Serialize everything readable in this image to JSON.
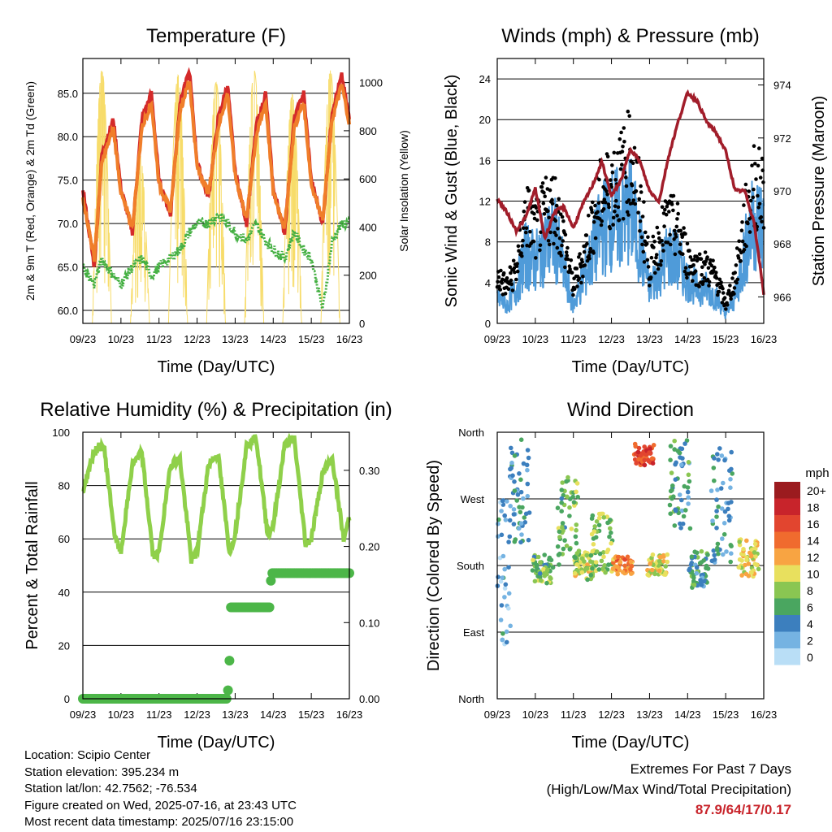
{
  "chart_data": [
    {
      "type": "line",
      "title": "Temperature (F)",
      "xlabel": "Time (Day/UTC)",
      "ylabel": "2m & 9m T (Red, Orange) & 2m Td (Green)",
      "y2label": "Solar Insolation (Yellow)",
      "x_ticks": [
        "09/23",
        "10/23",
        "11/23",
        "12/23",
        "13/23",
        "14/23",
        "15/23",
        "16/23"
      ],
      "ylim": [
        58.5,
        89
      ],
      "yticks": [
        "60.0",
        "65.0",
        "70.0",
        "75.0",
        "80.0",
        "85.0"
      ],
      "y2lim": [
        0,
        1100
      ],
      "y2ticks": [
        "0",
        "200",
        "400",
        "600",
        "800",
        "1000"
      ],
      "x_days": [
        0,
        0.3,
        0.5,
        0.8,
        1.0,
        1.3,
        1.55,
        1.8,
        2.0,
        2.3,
        2.55,
        2.8,
        3.0,
        3.3,
        3.55,
        3.8,
        4.0,
        4.3,
        4.55,
        4.8,
        5.0,
        5.3,
        5.55,
        5.8,
        6.0,
        6.3,
        6.55,
        6.8,
        7.0
      ],
      "series": [
        {
          "name": "2m T",
          "color": "#d42a2a",
          "values": [
            74,
            65,
            78,
            82,
            74,
            69,
            82,
            85,
            75,
            71,
            84,
            87.5,
            77,
            73,
            82,
            86,
            76,
            70,
            81,
            85,
            74,
            69,
            82,
            85,
            75,
            70,
            83,
            87,
            82
          ]
        },
        {
          "name": "9m T",
          "color": "#f07e2a",
          "values": [
            73,
            66,
            77,
            81,
            73.5,
            69.5,
            81,
            84,
            74.5,
            71.5,
            83,
            86.5,
            76.5,
            73.5,
            81,
            85,
            75.5,
            70.5,
            80,
            84,
            73.5,
            69.5,
            81,
            84,
            74.5,
            70.5,
            82,
            86,
            81.5
          ]
        },
        {
          "name": "2m Td",
          "color": "#45b043",
          "values": [
            65,
            63,
            66,
            64,
            63,
            65,
            66,
            64,
            65,
            66,
            67,
            69,
            70,
            70,
            71,
            70,
            69,
            68,
            70,
            68,
            67,
            66,
            69,
            67,
            66,
            60,
            68,
            70,
            70
          ]
        }
      ],
      "solar_peaks": [
        1050,
        700,
        1030,
        1000,
        1050,
        950,
        1050,
        1000
      ]
    },
    {
      "type": "line",
      "title": "Winds (mph) & Pressure (mb)",
      "xlabel": "Time (Day/UTC)",
      "ylabel": "Sonic Wind & Gust (Blue, Black)",
      "y2label": "Station Pressure (Maroon)",
      "x_ticks": [
        "09/23",
        "10/23",
        "11/23",
        "12/23",
        "13/23",
        "14/23",
        "15/23",
        "16/23"
      ],
      "ylim": [
        0,
        26
      ],
      "yticks": [
        "0",
        "4",
        "8",
        "12",
        "16",
        "20",
        "24"
      ],
      "y2lim": [
        965,
        975
      ],
      "y2ticks": [
        "966",
        "968",
        "970",
        "972",
        "974"
      ],
      "x_days": [
        0,
        0.25,
        0.5,
        0.75,
        1.0,
        1.25,
        1.5,
        1.75,
        2.0,
        2.25,
        2.5,
        2.75,
        3.0,
        3.25,
        3.5,
        3.75,
        4.0,
        4.25,
        4.5,
        4.75,
        5.0,
        5.25,
        5.5,
        5.75,
        6.0,
        6.25,
        6.5,
        6.75,
        7.0
      ],
      "series": [
        {
          "name": "Wind",
          "color": "#4f9bd9",
          "values": [
            3,
            2,
            4,
            8,
            7,
            9,
            10,
            6,
            2,
            5,
            8,
            11,
            12,
            12,
            13,
            9,
            4,
            6,
            8,
            7,
            5,
            4,
            4,
            3,
            1,
            3,
            8,
            12,
            11
          ]
        },
        {
          "name": "Gust",
          "color": "#000000",
          "values": [
            5,
            4,
            6,
            12,
            10,
            12,
            13,
            9,
            4,
            7,
            11,
            14,
            15,
            16,
            18,
            13,
            6,
            9,
            11,
            10,
            7,
            6,
            6,
            5,
            2,
            5,
            11,
            15,
            14
          ]
        },
        {
          "name": "Pressure",
          "color": "#a11d2a",
          "values": [
            969.7,
            969.2,
            968.5,
            969.0,
            970.1,
            968.2,
            969.2,
            969.4,
            968.6,
            969.5,
            970.2,
            971.1,
            969.8,
            970.4,
            971.6,
            971.1,
            970.0,
            969.6,
            971.3,
            972.6,
            973.7,
            973.4,
            972.6,
            972.2,
            971.5,
            970.0,
            970.0,
            968.8,
            966.1
          ]
        }
      ]
    },
    {
      "type": "line",
      "title": "Relative Humidity (%) & Precipitation (in)",
      "xlabel": "Time (Day/UTC)",
      "ylabel": "Percent & Total Rainfall",
      "x_ticks": [
        "09/23",
        "10/23",
        "11/23",
        "12/23",
        "13/23",
        "14/23",
        "15/23",
        "16/23"
      ],
      "ylim": [
        0,
        100
      ],
      "yticks": [
        "0",
        "20",
        "40",
        "60",
        "80",
        "100"
      ],
      "y2lim": [
        0,
        0.35
      ],
      "y2ticks": [
        "0.00",
        "0.10",
        "0.20",
        "0.30"
      ],
      "x_days": [
        0,
        0.3,
        0.55,
        0.85,
        1.0,
        1.3,
        1.55,
        1.85,
        2.0,
        2.3,
        2.55,
        2.85,
        3.0,
        3.3,
        3.55,
        3.85,
        4.0,
        4.3,
        4.55,
        4.85,
        5.0,
        5.3,
        5.55,
        5.85,
        6.0,
        6.3,
        6.55,
        6.85,
        7.0
      ],
      "series": [
        {
          "name": "RH",
          "color": "#8fd04a",
          "values": [
            78,
            93,
            95,
            60,
            55,
            88,
            92,
            53,
            55,
            88,
            90,
            52,
            55,
            88,
            92,
            55,
            62,
            95,
            98,
            62,
            65,
            95,
            98,
            58,
            60,
            85,
            90,
            60,
            68
          ]
        }
      ],
      "precip": {
        "name": "Total Rainfall",
        "color": "#4cb648",
        "steps": [
          [
            0,
            0
          ],
          [
            3.8,
            0
          ],
          [
            3.85,
            0.05
          ],
          [
            3.88,
            0.12
          ],
          [
            4.9,
            0.12
          ],
          [
            4.95,
            0.165
          ],
          [
            7.0,
            0.165
          ]
        ]
      }
    },
    {
      "type": "scatter",
      "title": "Wind Direction",
      "xlabel": "Time (Day/UTC)",
      "ylabel": "Direction (Colored By Speed)",
      "x_ticks": [
        "09/23",
        "10/23",
        "11/23",
        "12/23",
        "13/23",
        "14/23",
        "15/23",
        "16/23"
      ],
      "yticks": [
        "North",
        "East",
        "South",
        "West",
        "North"
      ],
      "ylim": [
        0,
        360
      ],
      "legend": {
        "title": "mph",
        "labels": [
          "20+",
          "18",
          "16",
          "14",
          "12",
          "10",
          "8",
          "6",
          "4",
          "2",
          "0"
        ],
        "colors": [
          "#9b1b1f",
          "#c8242b",
          "#e2452f",
          "#f06b2e",
          "#f8a442",
          "#e8e05e",
          "#8ac652",
          "#4aa660",
          "#3c7fbe",
          "#75b3e2",
          "#b9def6"
        ]
      },
      "clusters": [
        {
          "day": 0.1,
          "dir": 150,
          "spread": 120,
          "speed": 3
        },
        {
          "day": 0.6,
          "dir": 280,
          "spread": 70,
          "speed": 4
        },
        {
          "day": 1.2,
          "dir": 175,
          "spread": 20,
          "speed": 7
        },
        {
          "day": 1.85,
          "dir": 240,
          "spread": 60,
          "speed": 7
        },
        {
          "day": 2.3,
          "dir": 180,
          "spread": 20,
          "speed": 9
        },
        {
          "day": 2.75,
          "dir": 210,
          "spread": 40,
          "speed": 8
        },
        {
          "day": 3.3,
          "dir": 180,
          "spread": 12,
          "speed": 13
        },
        {
          "day": 3.85,
          "dir": 330,
          "spread": 15,
          "speed": 16
        },
        {
          "day": 4.2,
          "dir": 180,
          "spread": 15,
          "speed": 10
        },
        {
          "day": 4.8,
          "dir": 290,
          "spread": 60,
          "speed": 5
        },
        {
          "day": 5.3,
          "dir": 175,
          "spread": 25,
          "speed": 5
        },
        {
          "day": 5.9,
          "dir": 260,
          "spread": 80,
          "speed": 4
        },
        {
          "day": 6.6,
          "dir": 190,
          "spread": 25,
          "speed": 10
        }
      ]
    }
  ],
  "station": {
    "location": "Location: Scipio Center",
    "elevation": "Station elevation: 395.234 m",
    "latlon": "Station lat/lon: 42.7562; -76.534",
    "created": "Figure created on Wed, 2025-07-16, at 23:43 UTC",
    "recent": "Most recent data timestamp: 2025/07/16 23:15:00"
  },
  "extremes": {
    "title": "Extremes For Past 7 Days",
    "subtitle": "(High/Low/Max Wind/Total Precipitation)",
    "values": "87.9/64/17/0.17"
  }
}
